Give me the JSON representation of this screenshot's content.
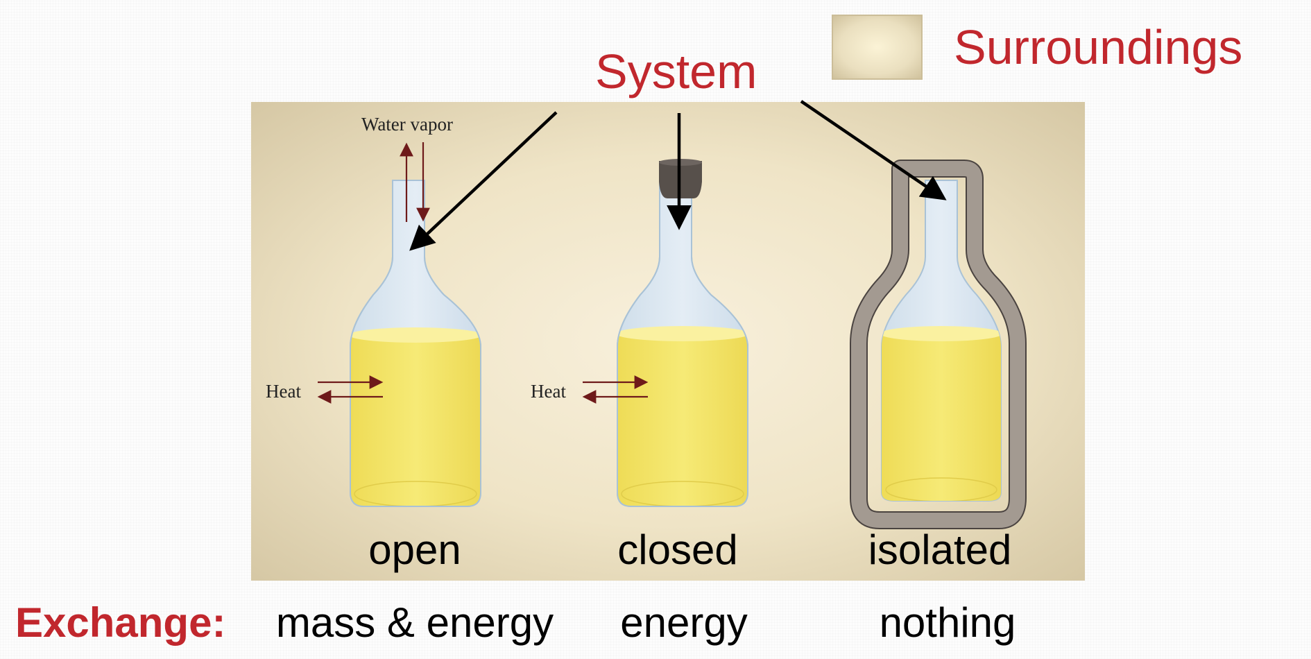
{
  "legend": {
    "surroundings_label": "Surroundings"
  },
  "system_label": "System",
  "flask_annotations": {
    "water_vapor": "Water vapor",
    "heat_open": "Heat",
    "heat_closed": "Heat"
  },
  "flasks": [
    {
      "type_label": "open",
      "exchange": "mass & energy"
    },
    {
      "type_label": "closed",
      "exchange": "energy"
    },
    {
      "type_label": "isolated",
      "exchange": "nothing"
    }
  ],
  "exchange_label": "Exchange:",
  "colors": {
    "red_text": "#c1272d",
    "surroundings": "#d9ccaa",
    "liquid": "#f2e46a",
    "glass": "#dbe7f1",
    "insulation": "#a39a91",
    "cork": "#57504b",
    "arrow_dark_red": "#6e1a1a"
  }
}
